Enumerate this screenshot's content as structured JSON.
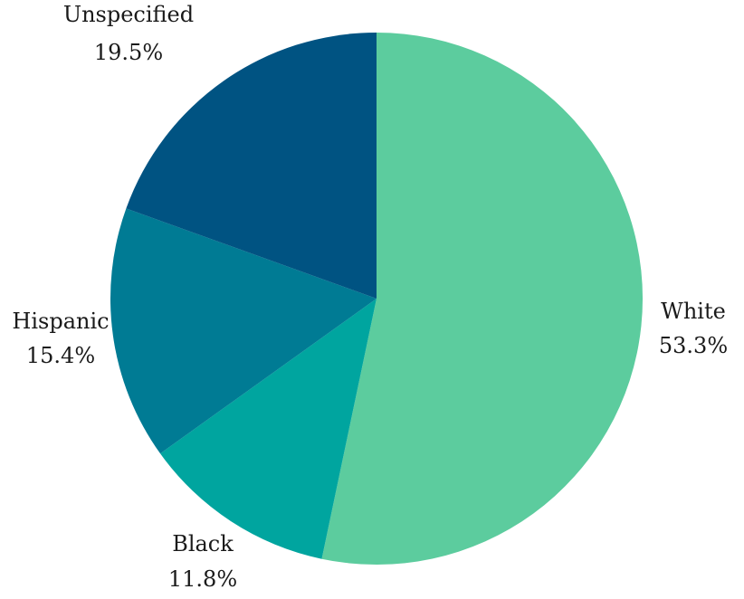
{
  "chart_data": {
    "type": "pie",
    "title": "",
    "start_angle_deg": 0,
    "direction": "clockwise",
    "legend": "none",
    "slices": [
      {
        "label": "White",
        "value": 53.3,
        "value_label": "53.3%",
        "color": "#5ccc9e"
      },
      {
        "label": "Black",
        "value": 11.8,
        "value_label": "11.8%",
        "color": "#00a59f"
      },
      {
        "label": "Hispanic",
        "value": 15.4,
        "value_label": "15.4%",
        "color": "#007b94"
      },
      {
        "label": "Unspecified",
        "value": 19.5,
        "value_label": "19.5%",
        "color": "#005382"
      }
    ]
  }
}
